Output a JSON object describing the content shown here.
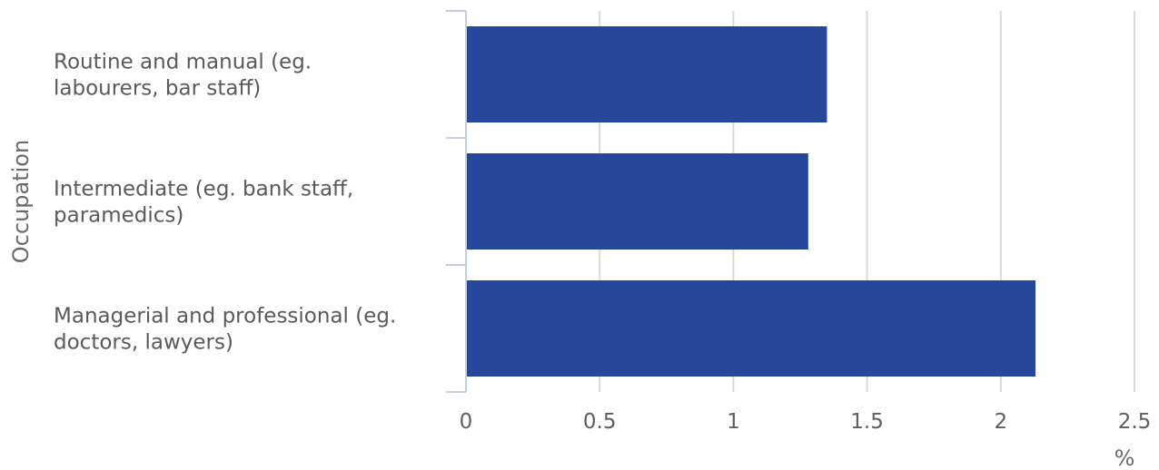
{
  "chart_data": {
    "type": "bar",
    "orientation": "horizontal",
    "categories": [
      [
        "Routine and manual (eg.",
        "labourers, bar staff)"
      ],
      [
        "Intermediate (eg. bank staff,",
        "paramedics)"
      ],
      [
        "Managerial and professional (eg.",
        "doctors, lawyers)"
      ]
    ],
    "values": [
      1.35,
      1.28,
      2.13
    ],
    "xlabel": "%",
    "ylabel": "Occupation",
    "xlim": [
      0,
      2.5
    ],
    "xticks": [
      "0",
      "0.5",
      "1",
      "1.5",
      "2",
      "2.5"
    ],
    "grid": true,
    "bar_color": "#27479a",
    "grid_color": "#d9d9d9",
    "axis_color": "#c5cfe0"
  }
}
